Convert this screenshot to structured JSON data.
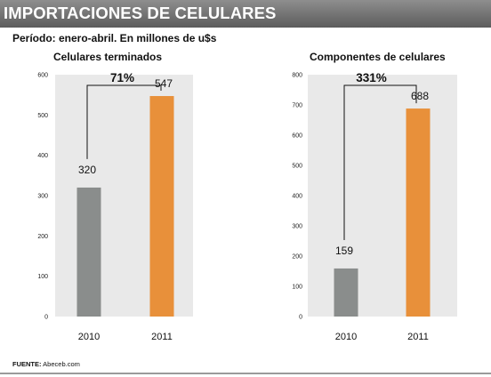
{
  "banner_title": "IMPORTACIONES DE CELULARES",
  "subtitle": "Período: enero-abril. En millones de u$s",
  "source_label": "FUENTE:",
  "source_value": "Abeceb.com",
  "colors": {
    "bar_2010": "#8a8d8c",
    "bar_2011": "#e8903a",
    "plot_bg": "#e9e9e9",
    "banner": "#6e6e6e"
  },
  "chart_data": [
    {
      "type": "bar",
      "title": "Celulares terminados",
      "categories": [
        "2010",
        "2011"
      ],
      "values": [
        320,
        547
      ],
      "value_labels": [
        "320",
        "547"
      ],
      "yticks": [
        "0",
        "100",
        "200",
        "300",
        "400",
        "500",
        "600"
      ],
      "ylim": [
        0,
        600
      ],
      "growth_label": "71%",
      "xlabel": "",
      "ylabel": "",
      "grid": false
    },
    {
      "type": "bar",
      "title": "Componentes de celulares",
      "categories": [
        "2010",
        "2011"
      ],
      "values": [
        159,
        688
      ],
      "value_labels": [
        "159",
        "688"
      ],
      "yticks": [
        "0",
        "100",
        "200",
        "300",
        "400",
        "500",
        "600",
        "700",
        "800"
      ],
      "ylim": [
        0,
        800
      ],
      "growth_label": "331%",
      "xlabel": "",
      "ylabel": "",
      "grid": false
    }
  ]
}
